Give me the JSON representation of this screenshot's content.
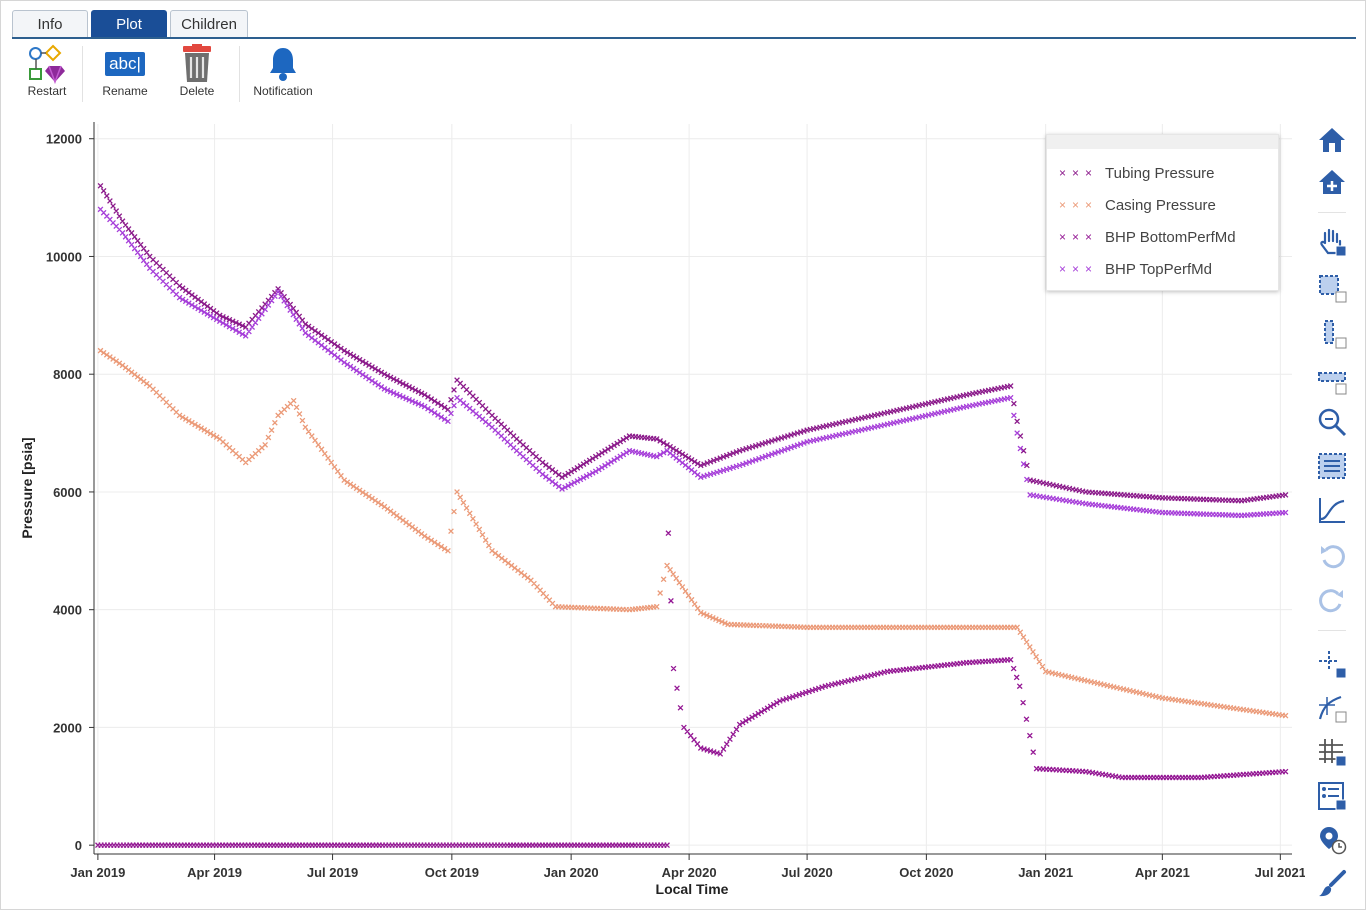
{
  "tabs": [
    {
      "label": "Info",
      "active": false
    },
    {
      "label": "Plot",
      "active": true
    },
    {
      "label": "Children",
      "active": false
    }
  ],
  "toolbar": {
    "restart_label": "Restart",
    "rename_label": "Rename",
    "rename_icon_text": "abc|",
    "delete_label": "Delete",
    "notification_label": "Notification"
  },
  "rail_icons": [
    "home-icon",
    "home-all-icon",
    "pan-icon",
    "box-zoom-icon",
    "x-zoom-icon",
    "y-zoom-icon",
    "zoom-icon",
    "select-icon",
    "curve-icon",
    "undo-icon",
    "redo-icon",
    "crosshair-icon",
    "hover-icon",
    "grid-icon",
    "legend-icon",
    "time-icon",
    "paint-icon"
  ],
  "colors": {
    "tubing": "#8b1a8b",
    "casing": "#eb9a78",
    "bhp_bottom": "#941794",
    "bhp_top": "#a63ed9",
    "accent": "#1a4e97",
    "rail_icon": "#2e5ea8"
  },
  "chart_data": {
    "type": "scatter",
    "xlabel": "Local Time",
    "ylabel": "Pressure [psia]",
    "x_ticks": [
      "Jan 2019",
      "Apr 2019",
      "Jul 2019",
      "Oct 2019",
      "Jan 2020",
      "Apr 2020",
      "Jul 2020",
      "Oct 2020",
      "Jan 2021",
      "Apr 2021",
      "Jul 2021"
    ],
    "x_tick_dates": [
      "2019-01-01",
      "2019-04-01",
      "2019-07-01",
      "2019-10-01",
      "2020-01-01",
      "2020-04-01",
      "2020-07-01",
      "2020-10-01",
      "2021-01-01",
      "2021-04-01",
      "2021-07-01"
    ],
    "xlim": [
      "2018-12-29",
      "2021-07-10"
    ],
    "ylim": [
      -150,
      12250
    ],
    "y_ticks": [
      0,
      2000,
      4000,
      6000,
      8000,
      10000,
      12000
    ],
    "grid": true,
    "legend_position": "top-right",
    "marker": "x",
    "series": [
      {
        "name": "Tubing Pressure",
        "color": "#8b1a8b",
        "points": [
          [
            "2019-01-03",
            11200
          ],
          [
            "2019-01-20",
            10600
          ],
          [
            "2019-02-10",
            10000
          ],
          [
            "2019-03-05",
            9500
          ],
          [
            "2019-04-05",
            9000
          ],
          [
            "2019-04-25",
            8800
          ],
          [
            "2019-05-20",
            9450
          ],
          [
            "2019-06-10",
            8850
          ],
          [
            "2019-07-10",
            8400
          ],
          [
            "2019-08-10",
            8000
          ],
          [
            "2019-09-10",
            7650
          ],
          [
            "2019-09-28",
            7400
          ],
          [
            "2019-10-05",
            7900
          ],
          [
            "2019-11-01",
            7300
          ],
          [
            "2019-11-20",
            6900
          ],
          [
            "2019-12-10",
            6500
          ],
          [
            "2019-12-25",
            6250
          ],
          [
            "2020-01-20",
            6600
          ],
          [
            "2020-02-15",
            6950
          ],
          [
            "2020-03-07",
            6900
          ],
          [
            "2020-03-15",
            6800
          ],
          [
            "2020-04-10",
            6450
          ],
          [
            "2020-05-10",
            6700
          ],
          [
            "2020-07-01",
            7050
          ],
          [
            "2020-09-01",
            7350
          ],
          [
            "2020-11-01",
            7650
          ],
          [
            "2020-12-05",
            7800
          ],
          [
            "2020-12-10",
            7200
          ],
          [
            "2020-12-20",
            6200
          ],
          [
            "2021-02-01",
            6000
          ],
          [
            "2021-04-01",
            5900
          ],
          [
            "2021-06-01",
            5850
          ],
          [
            "2021-07-05",
            5950
          ]
        ]
      },
      {
        "name": "Casing Pressure",
        "color": "#eb9a78",
        "points": [
          [
            "2019-01-03",
            8400
          ],
          [
            "2019-01-20",
            8150
          ],
          [
            "2019-02-10",
            7800
          ],
          [
            "2019-03-05",
            7300
          ],
          [
            "2019-04-05",
            6900
          ],
          [
            "2019-04-25",
            6500
          ],
          [
            "2019-05-10",
            6800
          ],
          [
            "2019-05-20",
            7300
          ],
          [
            "2019-06-01",
            7550
          ],
          [
            "2019-06-10",
            7100
          ],
          [
            "2019-07-10",
            6200
          ],
          [
            "2019-08-10",
            5750
          ],
          [
            "2019-09-10",
            5250
          ],
          [
            "2019-09-28",
            5000
          ],
          [
            "2019-10-05",
            6000
          ],
          [
            "2019-11-01",
            5000
          ],
          [
            "2019-12-01",
            4500
          ],
          [
            "2019-12-20",
            4050
          ],
          [
            "2020-02-15",
            4000
          ],
          [
            "2020-03-07",
            4050
          ],
          [
            "2020-03-15",
            4750
          ],
          [
            "2020-04-10",
            3950
          ],
          [
            "2020-05-01",
            3750
          ],
          [
            "2020-07-01",
            3700
          ],
          [
            "2020-12-10",
            3700
          ],
          [
            "2021-01-01",
            2950
          ],
          [
            "2021-04-01",
            2500
          ],
          [
            "2021-07-05",
            2200
          ]
        ]
      },
      {
        "name": "BHP BottomPerfMd",
        "color": "#941794",
        "points": [
          [
            "2019-01-01",
            0
          ],
          [
            "2020-03-15",
            0
          ],
          [
            "2020-03-16",
            5300
          ],
          [
            "2020-03-20",
            3000
          ],
          [
            "2020-03-28",
            2000
          ],
          [
            "2020-04-10",
            1650
          ],
          [
            "2020-04-25",
            1550
          ],
          [
            "2020-05-10",
            2050
          ],
          [
            "2020-06-10",
            2450
          ],
          [
            "2020-07-15",
            2700
          ],
          [
            "2020-09-01",
            2950
          ],
          [
            "2020-11-01",
            3100
          ],
          [
            "2020-12-05",
            3150
          ],
          [
            "2020-12-12",
            2700
          ],
          [
            "2020-12-25",
            1300
          ],
          [
            "2021-02-01",
            1250
          ],
          [
            "2021-03-01",
            1150
          ],
          [
            "2021-05-01",
            1150
          ],
          [
            "2021-07-05",
            1250
          ]
        ]
      },
      {
        "name": "BHP TopPerfMd",
        "color": "#a63ed9",
        "points": [
          [
            "2019-01-03",
            10800
          ],
          [
            "2019-01-20",
            10400
          ],
          [
            "2019-02-10",
            9800
          ],
          [
            "2019-03-05",
            9300
          ],
          [
            "2019-04-05",
            8900
          ],
          [
            "2019-04-25",
            8650
          ],
          [
            "2019-05-20",
            9400
          ],
          [
            "2019-06-10",
            8700
          ],
          [
            "2019-07-10",
            8200
          ],
          [
            "2019-08-10",
            7750
          ],
          [
            "2019-09-10",
            7450
          ],
          [
            "2019-09-28",
            7200
          ],
          [
            "2019-10-05",
            7600
          ],
          [
            "2019-11-01",
            7100
          ],
          [
            "2019-11-20",
            6700
          ],
          [
            "2019-12-10",
            6300
          ],
          [
            "2019-12-25",
            6050
          ],
          [
            "2020-01-20",
            6350
          ],
          [
            "2020-02-15",
            6700
          ],
          [
            "2020-03-07",
            6600
          ],
          [
            "2020-03-15",
            6700
          ],
          [
            "2020-04-10",
            6250
          ],
          [
            "2020-05-10",
            6450
          ],
          [
            "2020-07-01",
            6850
          ],
          [
            "2020-09-01",
            7150
          ],
          [
            "2020-11-01",
            7450
          ],
          [
            "2020-12-05",
            7600
          ],
          [
            "2020-12-10",
            7000
          ],
          [
            "2020-12-20",
            5950
          ],
          [
            "2021-02-01",
            5800
          ],
          [
            "2021-04-01",
            5650
          ],
          [
            "2021-06-01",
            5600
          ],
          [
            "2021-07-05",
            5650
          ]
        ]
      }
    ]
  }
}
